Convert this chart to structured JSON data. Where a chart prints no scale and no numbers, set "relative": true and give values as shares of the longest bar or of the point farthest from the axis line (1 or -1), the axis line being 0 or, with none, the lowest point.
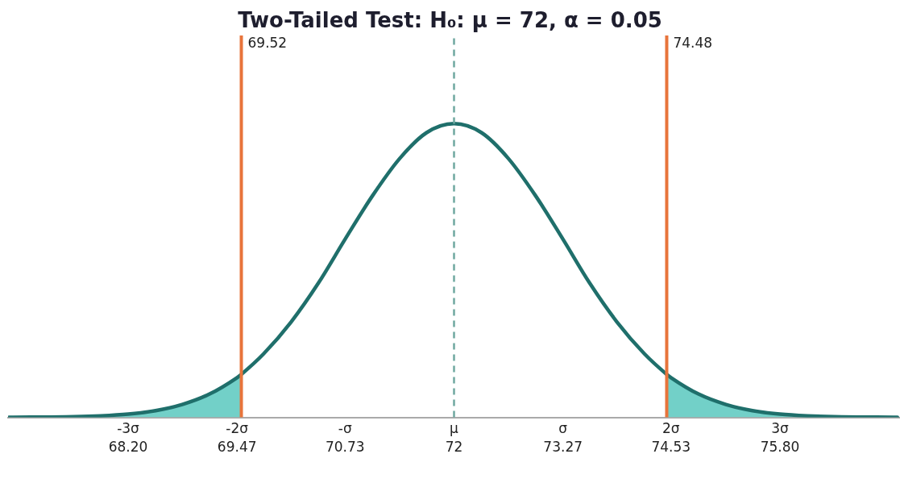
{
  "chart_data": {
    "type": "line",
    "title": "Two-Tailed Test: H₀: μ = 72, α = 0.05",
    "relative": true,
    "xlim": [
      66.8,
      77.2
    ],
    "xticks": [
      {
        "value": 68.2,
        "label": "68.20"
      },
      69.47,
      70.73,
      72,
      73.27,
      74.53,
      {
        "value": 75.8,
        "label": "75.80"
      }
    ],
    "annotations": [
      "-3σ",
      "-2σ",
      "-σ",
      "μ",
      "σ",
      "2σ",
      "3σ"
    ],
    "grid": false,
    "legend": false,
    "marker": "none",
    "series": [
      {
        "type": "area",
        "color": "#72d0c8",
        "x": [
          66.81,
          67.57,
          67.88,
          68.2,
          68.52,
          68.83,
          69.15,
          69.47,
          69.52
        ],
        "values": [
          0.0002,
          0.0022,
          0.0051,
          0.0111,
          0.0228,
          0.0439,
          0.0796,
          0.1353,
          0.1465
        ]
      },
      {
        "type": "area",
        "color": "#72d0c8",
        "x": [
          74.48,
          74.53,
          74.85,
          75.17,
          75.48,
          75.8,
          76.12,
          76.43,
          77.17
        ],
        "values": [
          0.1465,
          0.1353,
          0.0796,
          0.0439,
          0.0228,
          0.0111,
          0.0051,
          0.0022,
          0.0002
        ]
      },
      {
        "color": "#1f6f6b",
        "line_style": "solid",
        "x": [
          66.81,
          67.57,
          67.88,
          68.2,
          68.52,
          68.83,
          69.15,
          69.47,
          69.52,
          69.78,
          70.1,
          70.42,
          70.73,
          71.05,
          71.37,
          71.68,
          72,
          72.32,
          72.63,
          72.95,
          73.27,
          73.58,
          73.9,
          74.22,
          74.48,
          74.53,
          74.85,
          75.17,
          75.48,
          75.8,
          76.12,
          76.43,
          77.17
        ],
        "values": [
          0.0002,
          0.0022,
          0.0051,
          0.0111,
          0.0228,
          0.0439,
          0.0796,
          0.1353,
          0.1465,
          0.2163,
          0.3247,
          0.4578,
          0.6065,
          0.7548,
          0.8825,
          0.9692,
          1,
          0.9692,
          0.8825,
          0.7548,
          0.6065,
          0.4578,
          0.3247,
          0.2163,
          0.1465,
          0.1353,
          0.0796,
          0.0439,
          0.0228,
          0.0111,
          0.0051,
          0.0022,
          0.0002
        ]
      }
    ],
    "ref_lines": [
      {
        "axis": "x",
        "value": 69.52,
        "label": "69.52",
        "color": "#e8743b",
        "line_style": "solid"
      },
      {
        "axis": "x",
        "value": 74.48,
        "label": "74.48",
        "color": "#e8743b",
        "line_style": "solid"
      },
      {
        "axis": "x",
        "value": 72,
        "label": null,
        "color": "#6fa8a0",
        "line_style": "dashed"
      }
    ]
  }
}
